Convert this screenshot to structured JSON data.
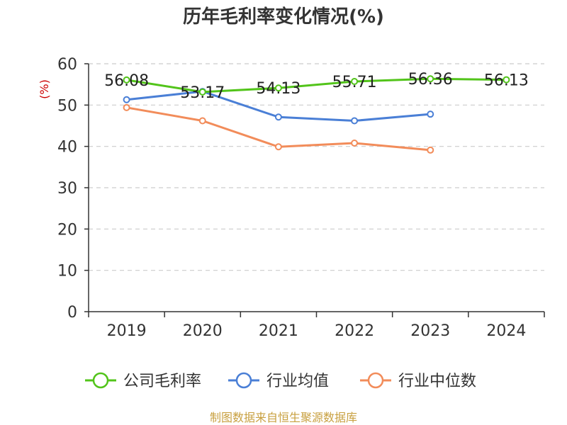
{
  "chart_data": {
    "type": "line",
    "title": "历年毛利率变化情况(%)",
    "ylabel": "(%)",
    "categories": [
      "2019",
      "2020",
      "2021",
      "2022",
      "2023",
      "2024"
    ],
    "yticks": [
      "0",
      "10",
      "20",
      "30",
      "40",
      "50",
      "60"
    ],
    "ylim": [
      0,
      60
    ],
    "grid": true,
    "legend_position": "bottom",
    "series": [
      {
        "name": "公司毛利率",
        "color": "#52c41a",
        "values": [
          56.08,
          53.17,
          54.13,
          55.71,
          56.36,
          56.13
        ],
        "labels": [
          "56.08",
          "53.17",
          "54.13",
          "55.71",
          "56.36",
          "56.13"
        ]
      },
      {
        "name": "行业均值",
        "color": "#4a7fd6",
        "values": [
          51.3,
          53.3,
          47.1,
          46.2,
          47.8,
          null
        ]
      },
      {
        "name": "行业中位数",
        "color": "#f28c5a",
        "values": [
          49.4,
          46.2,
          39.9,
          40.8,
          39.1,
          null
        ]
      }
    ]
  },
  "footer": "制图数据来自恒生聚源数据库"
}
